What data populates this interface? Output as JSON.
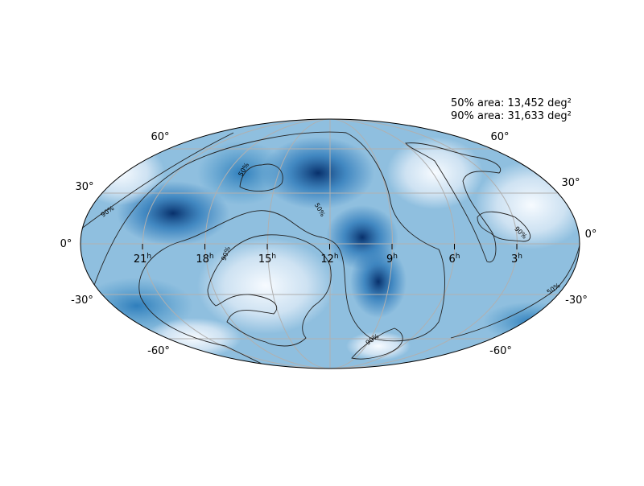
{
  "annotations": {
    "area_50": "50% area: 13,452 deg²",
    "area_90": "90% area: 31,633 deg²"
  },
  "latitude_labels_left": [
    "60°",
    "30°",
    "0°",
    "-30°",
    "-60°"
  ],
  "latitude_labels_right": [
    "60°",
    "30°",
    "0°",
    "-30°",
    "-60°"
  ],
  "longitude_labels": [
    {
      "hours": "21",
      "unit": "h"
    },
    {
      "hours": "18",
      "unit": "h"
    },
    {
      "hours": "15",
      "unit": "h"
    },
    {
      "hours": "12",
      "unit": "h"
    },
    {
      "hours": "9",
      "unit": "h"
    },
    {
      "hours": "6",
      "unit": "h"
    },
    {
      "hours": "3",
      "unit": "h"
    }
  ],
  "contour_labels": [
    "90%",
    "50%",
    "50%",
    "90%",
    "90%",
    "90%",
    "50%"
  ]
}
